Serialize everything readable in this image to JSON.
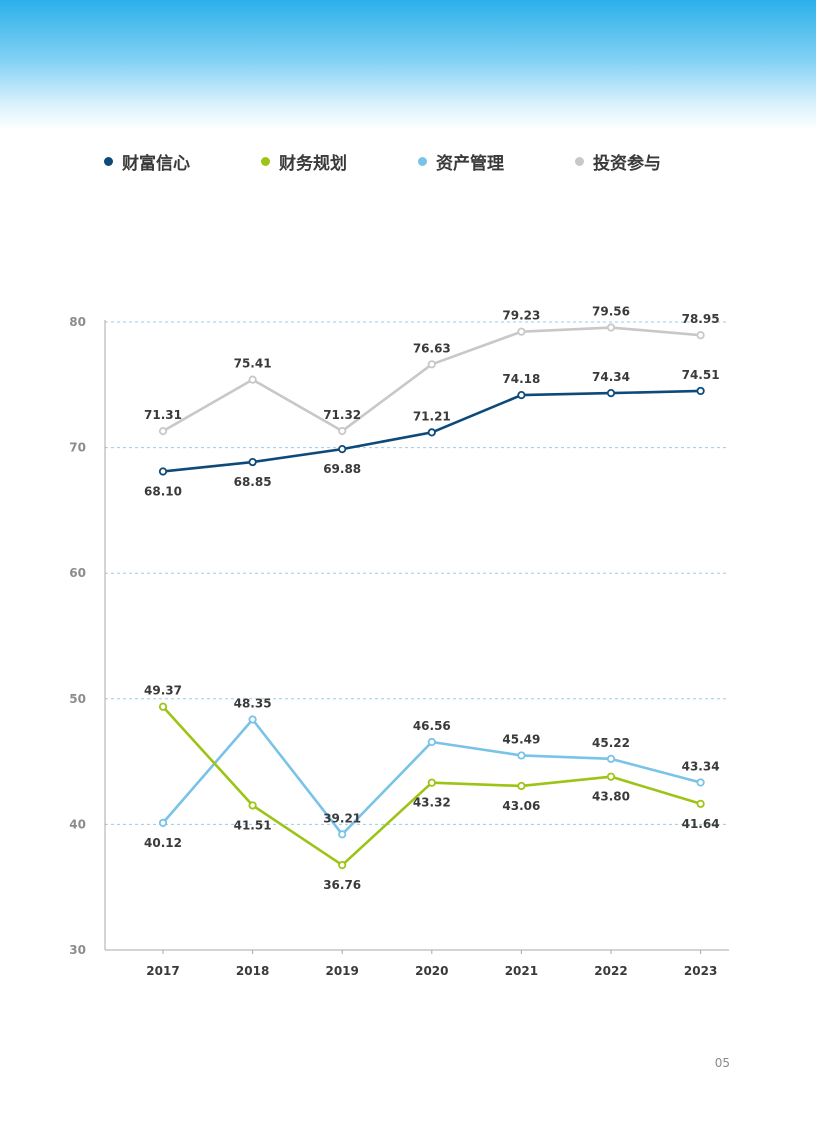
{
  "page_number": "05",
  "chart_data": {
    "type": "line",
    "title": "",
    "xlabel": "",
    "ylabel": "",
    "categories": [
      "2017",
      "2018",
      "2019",
      "2020",
      "2021",
      "2022",
      "2023"
    ],
    "ylim": [
      30,
      80
    ],
    "yticks": [
      "30",
      "40",
      "50",
      "60",
      "70",
      "80"
    ],
    "grid": "horizontal dashed",
    "legend": "top",
    "series": [
      {
        "name": "财富信心",
        "color": "#0d4a7a",
        "values": [
          68.1,
          68.85,
          69.88,
          71.21,
          74.18,
          74.34,
          74.51
        ],
        "labels": [
          "68.10",
          "68.85",
          "69.88",
          "71.21",
          "74.18",
          "74.34",
          "74.51"
        ]
      },
      {
        "name": "财务规划",
        "color": "#9cc414",
        "values": [
          49.37,
          41.51,
          36.76,
          43.32,
          43.06,
          43.8,
          41.64
        ],
        "labels": [
          "49.37",
          "41.51",
          "36.76",
          "43.32",
          "43.06",
          "43.80",
          "41.64"
        ]
      },
      {
        "name": "资产管理",
        "color": "#79c2e8",
        "values": [
          40.12,
          48.35,
          39.21,
          46.56,
          45.49,
          45.22,
          43.34
        ],
        "labels": [
          "40.12",
          "48.35",
          "39.21",
          "46.56",
          "45.49",
          "45.22",
          "43.34"
        ]
      },
      {
        "name": "投资参与",
        "color": "#c8c8c8",
        "values": [
          71.31,
          75.41,
          71.32,
          76.63,
          79.23,
          79.56,
          78.95
        ],
        "labels": [
          "71.31",
          "75.41",
          "71.32",
          "76.63",
          "79.23",
          "79.56",
          "78.95"
        ]
      }
    ]
  }
}
